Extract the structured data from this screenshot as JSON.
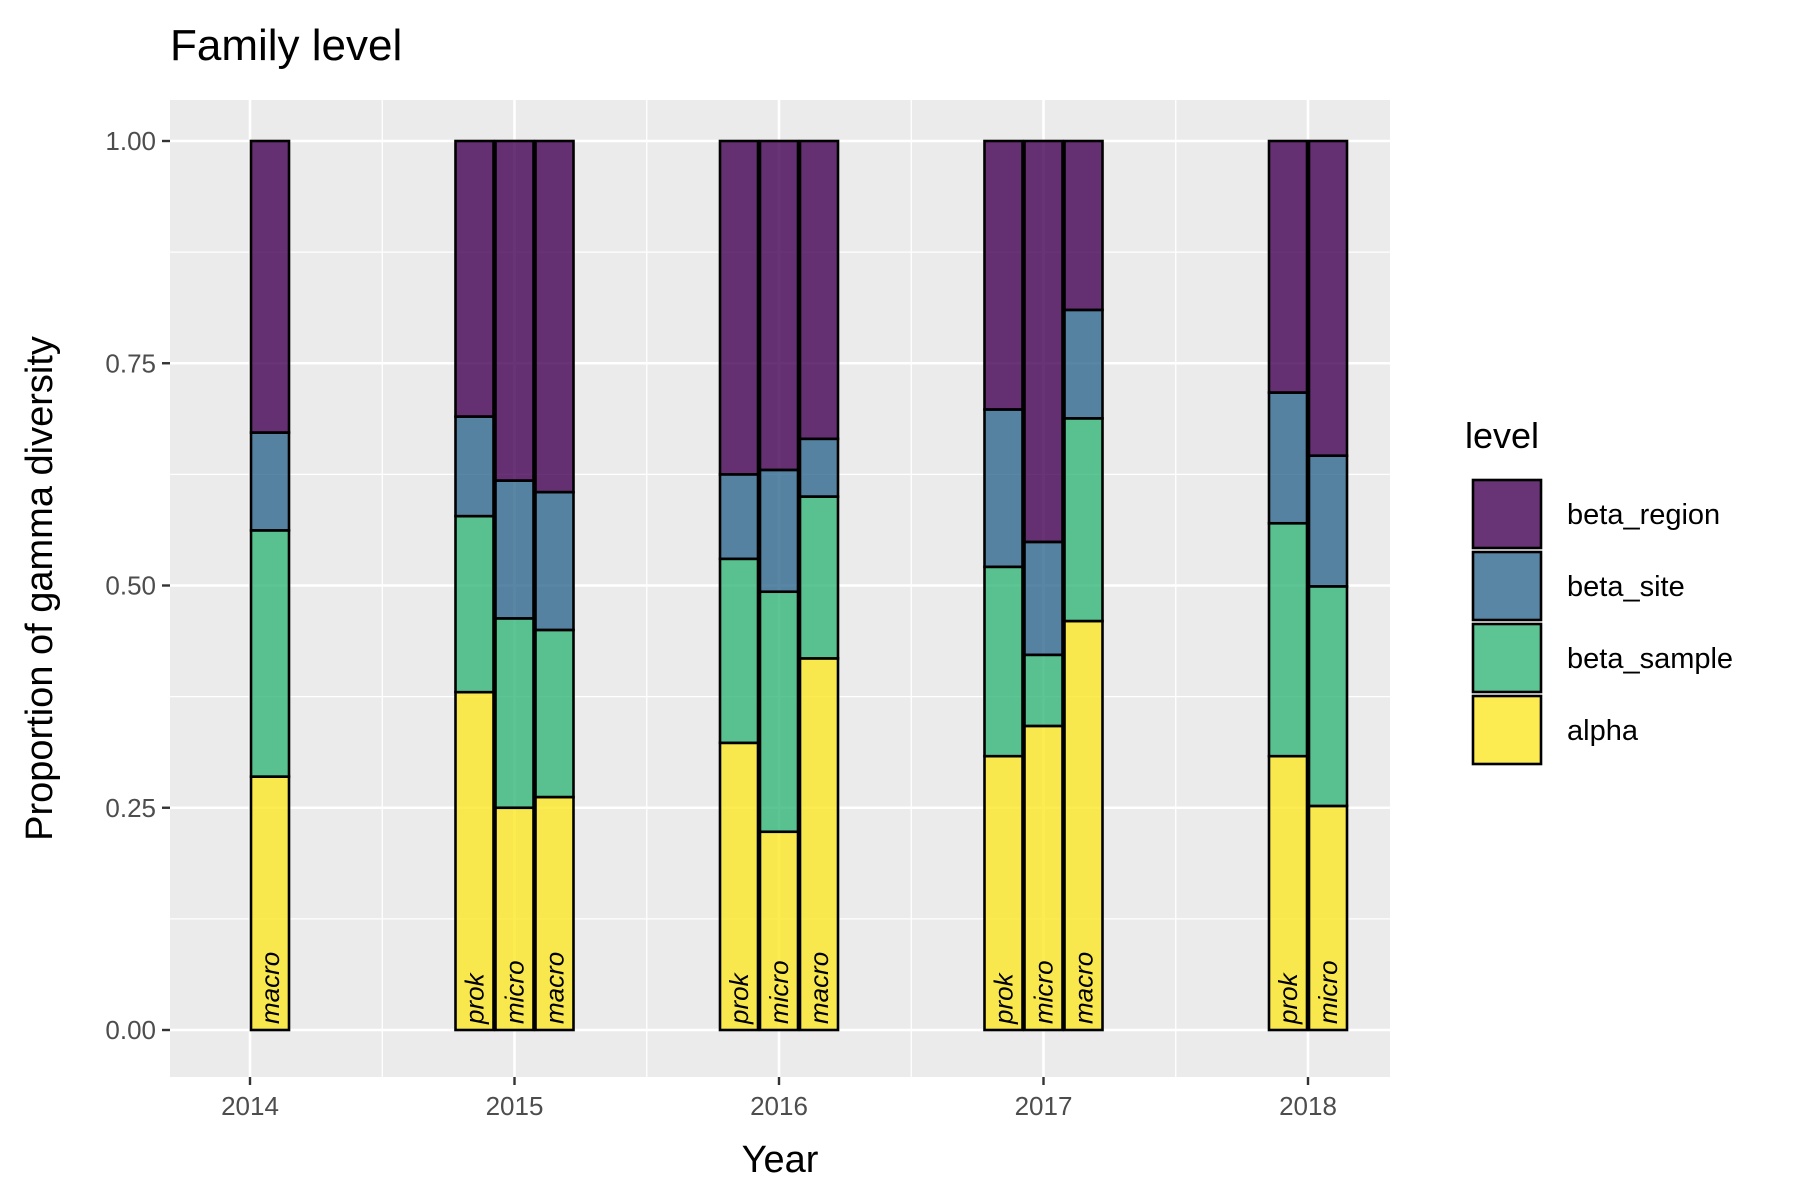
{
  "chart_data": {
    "type": "bar",
    "stacked": true,
    "title": "Family level",
    "xlabel": "Year",
    "ylabel": "Proportion of gamma diversity",
    "ylim": [
      0,
      1
    ],
    "x_ticks": [
      "2014",
      "2015",
      "2016",
      "2017",
      "2018"
    ],
    "y_ticks": [
      "0.00",
      "0.25",
      "0.50",
      "0.75",
      "1.00"
    ],
    "grid": true,
    "legend": {
      "title": "level",
      "position": "right",
      "entries": [
        {
          "name": "beta_region",
          "color": "#440154"
        },
        {
          "name": "beta_site",
          "color": "#31688E"
        },
        {
          "name": "beta_sample",
          "color": "#35B779"
        },
        {
          "name": "alpha",
          "color": "#FDE725"
        }
      ]
    },
    "stack_order": [
      "alpha",
      "beta_sample",
      "beta_site",
      "beta_region"
    ],
    "groups": [
      {
        "year": 2014,
        "bars": [
          {
            "label": "macro",
            "alpha": 0.285,
            "beta_sample": 0.277,
            "beta_site": 0.11,
            "beta_region": 0.328
          }
        ]
      },
      {
        "year": 2015,
        "bars": [
          {
            "label": "prok",
            "alpha": 0.38,
            "beta_sample": 0.198,
            "beta_site": 0.112,
            "beta_region": 0.31
          },
          {
            "label": "micro",
            "alpha": 0.25,
            "beta_sample": 0.213,
            "beta_site": 0.155,
            "beta_region": 0.382
          },
          {
            "label": "macro",
            "alpha": 0.262,
            "beta_sample": 0.188,
            "beta_site": 0.155,
            "beta_region": 0.395
          }
        ]
      },
      {
        "year": 2016,
        "bars": [
          {
            "label": "prok",
            "alpha": 0.323,
            "beta_sample": 0.207,
            "beta_site": 0.095,
            "beta_region": 0.375
          },
          {
            "label": "micro",
            "alpha": 0.223,
            "beta_sample": 0.27,
            "beta_site": 0.137,
            "beta_region": 0.37
          },
          {
            "label": "macro",
            "alpha": 0.418,
            "beta_sample": 0.182,
            "beta_site": 0.065,
            "beta_region": 0.335
          }
        ]
      },
      {
        "year": 2017,
        "bars": [
          {
            "label": "prok",
            "alpha": 0.308,
            "beta_sample": 0.213,
            "beta_site": 0.177,
            "beta_region": 0.302
          },
          {
            "label": "micro",
            "alpha": 0.342,
            "beta_sample": 0.08,
            "beta_site": 0.127,
            "beta_region": 0.451
          },
          {
            "label": "macro",
            "alpha": 0.46,
            "beta_sample": 0.228,
            "beta_site": 0.122,
            "beta_region": 0.19
          }
        ]
      },
      {
        "year": 2018,
        "bars": [
          {
            "label": "prok",
            "alpha": 0.308,
            "beta_sample": 0.262,
            "beta_site": 0.147,
            "beta_region": 0.283
          },
          {
            "label": "micro",
            "alpha": 0.252,
            "beta_sample": 0.247,
            "beta_site": 0.147,
            "beta_region": 0.354
          }
        ]
      }
    ]
  }
}
